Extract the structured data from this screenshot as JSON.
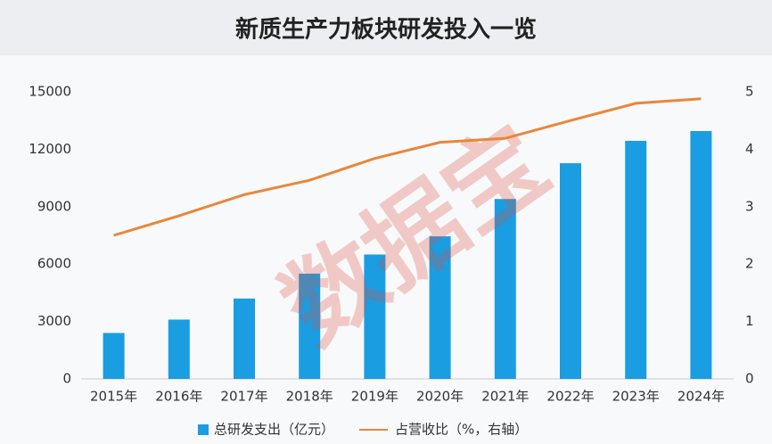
{
  "chart_data": {
    "type": "bar-line",
    "title": "新质生产力板块研发投入一览",
    "watermark": "数据宝",
    "categories": [
      "2015年",
      "2016年",
      "2017年",
      "2018年",
      "2019年",
      "2020年",
      "2021年",
      "2022年",
      "2023年",
      "2024年"
    ],
    "series": [
      {
        "name": "总研发支出（亿元）",
        "type": "bar",
        "color": "#1b9de2",
        "values": [
          2400,
          3100,
          4200,
          5500,
          6500,
          7450,
          9400,
          11270,
          12440,
          12950
        ]
      },
      {
        "name": "占营收比（%，右轴）",
        "type": "line",
        "axis": "y2",
        "color": "#e8873a",
        "values": [
          2.5,
          2.84,
          3.21,
          3.46,
          3.84,
          4.12,
          4.19,
          4.5,
          4.8,
          4.88
        ]
      }
    ],
    "ylim": [
      0,
      15000
    ],
    "yticks": [
      0,
      3000,
      6000,
      9000,
      12000,
      15000
    ],
    "y2lim": [
      0,
      5
    ],
    "y2ticks": [
      0,
      1,
      2,
      3,
      4,
      5
    ],
    "grid": false,
    "legend": "bottom"
  }
}
